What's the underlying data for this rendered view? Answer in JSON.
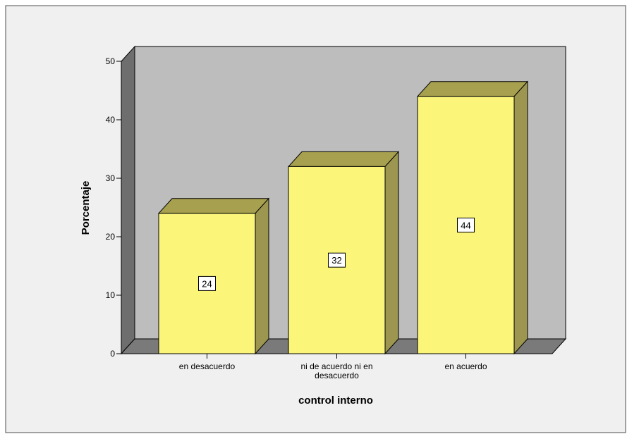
{
  "chart_data": {
    "type": "bar",
    "categories": [
      "en desacuerdo",
      "ni de acuerdo ni en desacuerdo",
      "en acuerdo"
    ],
    "category_label_lines": [
      [
        "en desacuerdo"
      ],
      [
        "ni de acuerdo ni en",
        "desacuerdo"
      ],
      [
        "en acuerdo"
      ]
    ],
    "values": [
      24,
      32,
      44
    ],
    "data_labels": [
      "24",
      "32",
      "44"
    ],
    "xlabel": "control interno",
    "ylabel": "Porcentaje",
    "ylim": [
      0,
      50
    ],
    "yticks": [
      0,
      10,
      20,
      30,
      40,
      50
    ],
    "ytick_labels": [
      "0",
      "10",
      "20",
      "30",
      "40",
      "50"
    ],
    "style": "3d",
    "grid": false
  },
  "colors": {
    "background": "#ffffff",
    "frame_border": "#4d4d4d",
    "chart_area": "#f0f0f0",
    "back_wall": "#bdbdbd",
    "floor": "#7a7a7a",
    "left_wall": "#6e6e6e",
    "bar_front": "#fbf67a",
    "bar_top": "#a7a04e",
    "bar_side": "#9c9650",
    "outline": "#000000"
  }
}
